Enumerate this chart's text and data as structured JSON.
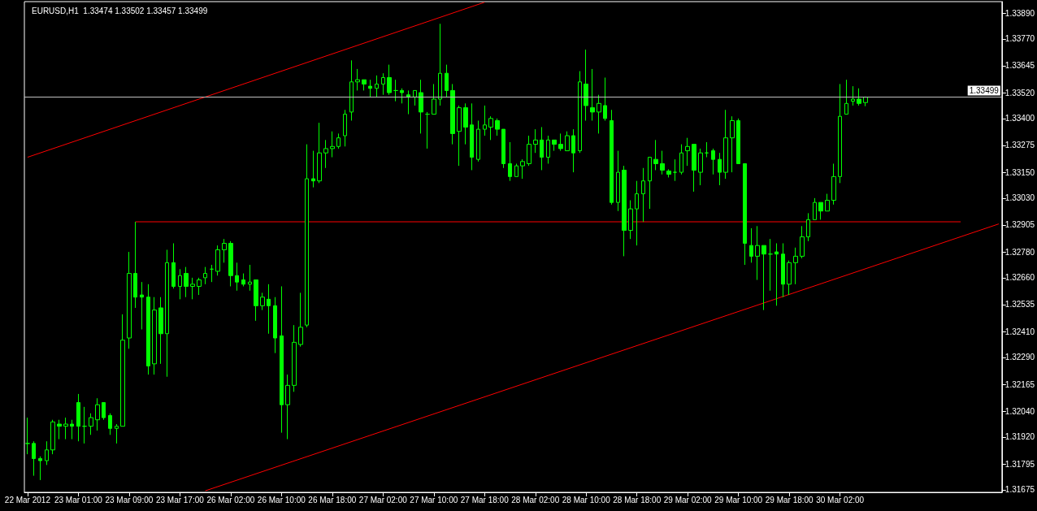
{
  "chart_data": {
    "type": "candlestick",
    "title": "EURUSD,H1  1.33474 1.33502 1.33457 1.33499",
    "color": "#00ff00",
    "categories": [
      "22 Mar 2012",
      null,
      null,
      null,
      null,
      null,
      null,
      null,
      "23 Mar 01:00",
      null,
      null,
      null,
      null,
      null,
      null,
      null,
      "23 Mar 09:00",
      null,
      null,
      null,
      null,
      null,
      null,
      null,
      "23 Mar 17:00",
      null,
      null,
      null,
      null,
      null,
      null,
      null,
      "26 Mar 02:00",
      null,
      null,
      null,
      null,
      null,
      null,
      null,
      "26 Mar 10:00",
      null,
      null,
      null,
      null,
      null,
      null,
      null,
      "26 Mar 18:00",
      null,
      null,
      null,
      null,
      null,
      null,
      null,
      "27 Mar 02:00",
      null,
      null,
      null,
      null,
      null,
      null,
      null,
      "27 Mar 10:00",
      null,
      null,
      null,
      null,
      null,
      null,
      null,
      "27 Mar 18:00",
      null,
      null,
      null,
      null,
      null,
      null,
      null,
      "28 Mar 02:00",
      null,
      null,
      null,
      null,
      null,
      null,
      null,
      "28 Mar 10:00",
      null,
      null,
      null,
      null,
      null,
      null,
      null,
      "28 Mar 18:00",
      null,
      null,
      null,
      null,
      null,
      null,
      null,
      "29 Mar 02:00",
      null,
      null,
      null,
      null,
      null,
      null,
      null,
      "29 Mar 10:00",
      null,
      null,
      null,
      null,
      null,
      null,
      null,
      "29 Mar 18:00",
      null,
      null,
      null,
      null,
      null,
      null,
      null,
      "30 Mar 02:00",
      null,
      null,
      null,
      null,
      null,
      null,
      null,
      null,
      null,
      null,
      null,
      null,
      null,
      null,
      null,
      null,
      null,
      null,
      null,
      null,
      null,
      null,
      null,
      null,
      null
    ],
    "ohlc": [
      [
        1.3189,
        1.3201,
        1.3184,
        1.3189
      ],
      [
        1.3189,
        1.319,
        1.3174,
        1.3182
      ],
      [
        1.3182,
        1.3183,
        1.3172,
        1.3181
      ],
      [
        1.3181,
        1.319,
        1.3179,
        1.3186
      ],
      [
        1.3186,
        1.32,
        1.3184,
        1.3199
      ],
      [
        1.3198,
        1.32,
        1.3191,
        1.3197
      ],
      [
        1.3197,
        1.3201,
        1.3191,
        1.3198
      ],
      [
        1.3198,
        1.32,
        1.3191,
        1.3197
      ],
      [
        1.3208,
        1.3212,
        1.319,
        1.3197
      ],
      [
        1.3197,
        1.3206,
        1.3189,
        1.3197
      ],
      [
        1.3197,
        1.3203,
        1.3193,
        1.3201
      ],
      [
        1.32,
        1.321,
        1.3195,
        1.3207
      ],
      [
        1.3208,
        1.3208,
        1.32,
        1.3201
      ],
      [
        1.3202,
        1.3203,
        1.3193,
        1.3196
      ],
      [
        1.3196,
        1.3198,
        1.3189,
        1.3197
      ],
      [
        1.3197,
        1.3249,
        1.3197,
        1.3237
      ],
      [
        1.3238,
        1.3278,
        1.3233,
        1.3268
      ],
      [
        1.3268,
        1.3292,
        1.3252,
        1.3257
      ],
      [
        1.3258,
        1.3264,
        1.3242,
        1.3257
      ],
      [
        1.3257,
        1.3263,
        1.3221,
        1.3225
      ],
      [
        1.3226,
        1.3257,
        1.3221,
        1.3251
      ],
      [
        1.3252,
        1.3257,
        1.3226,
        1.324
      ],
      [
        1.324,
        1.3279,
        1.322,
        1.3273
      ],
      [
        1.3273,
        1.3282,
        1.3261,
        1.3262
      ],
      [
        1.3262,
        1.327,
        1.3256,
        1.3267
      ],
      [
        1.3268,
        1.3271,
        1.3257,
        1.3262
      ],
      [
        1.3262,
        1.3266,
        1.3256,
        1.3263
      ],
      [
        1.3262,
        1.3266,
        1.3258,
        1.3265
      ],
      [
        1.3266,
        1.3271,
        1.3263,
        1.3268
      ],
      [
        1.327,
        1.3272,
        1.3264,
        1.327
      ],
      [
        1.3269,
        1.3281,
        1.3267,
        1.3279
      ],
      [
        1.3279,
        1.3284,
        1.3273,
        1.3282
      ],
      [
        1.3282,
        1.3283,
        1.3262,
        1.3267
      ],
      [
        1.3267,
        1.3273,
        1.326,
        1.3264
      ],
      [
        1.3265,
        1.3268,
        1.3262,
        1.3263
      ],
      [
        1.3263,
        1.3272,
        1.326,
        1.3264
      ],
      [
        1.3265,
        1.3265,
        1.3246,
        1.3253
      ],
      [
        1.3253,
        1.3259,
        1.3251,
        1.3257
      ],
      [
        1.3256,
        1.3263,
        1.324,
        1.3253
      ],
      [
        1.3253,
        1.3257,
        1.3231,
        1.3238
      ],
      [
        1.3239,
        1.3262,
        1.3194,
        1.3207
      ],
      [
        1.3207,
        1.3221,
        1.3191,
        1.3216
      ],
      [
        1.3216,
        1.3244,
        1.3213,
        1.3236
      ],
      [
        1.3235,
        1.3259,
        1.3234,
        1.3243
      ],
      [
        1.3244,
        1.3328,
        1.3243,
        1.3312
      ],
      [
        1.3312,
        1.3325,
        1.3308,
        1.3311
      ],
      [
        1.3311,
        1.3338,
        1.331,
        1.3324
      ],
      [
        1.3324,
        1.333,
        1.3317,
        1.3326
      ],
      [
        1.3326,
        1.3334,
        1.3322,
        1.3327
      ],
      [
        1.3327,
        1.3333,
        1.3326,
        1.3331
      ],
      [
        1.3332,
        1.3344,
        1.3327,
        1.3342
      ],
      [
        1.3343,
        1.3367,
        1.3339,
        1.3357
      ],
      [
        1.3357,
        1.3363,
        1.3353,
        1.3358
      ],
      [
        1.3358,
        1.3358,
        1.3353,
        1.3356
      ],
      [
        1.3355,
        1.3358,
        1.335,
        1.3354
      ],
      [
        1.3354,
        1.336,
        1.335,
        1.3356
      ],
      [
        1.3356,
        1.3361,
        1.3351,
        1.3359
      ],
      [
        1.3359,
        1.3365,
        1.3351,
        1.3352
      ],
      [
        1.3353,
        1.3358,
        1.3348,
        1.3353
      ],
      [
        1.3353,
        1.3354,
        1.3347,
        1.3352
      ],
      [
        1.3351,
        1.3353,
        1.3342,
        1.335
      ],
      [
        1.335,
        1.3353,
        1.3346,
        1.3353
      ],
      [
        1.3352,
        1.3358,
        1.3333,
        1.3343
      ],
      [
        1.3342,
        1.3343,
        1.3326,
        1.3342
      ],
      [
        1.3342,
        1.3356,
        1.3342,
        1.3349
      ],
      [
        1.3349,
        1.3384,
        1.3346,
        1.3361
      ],
      [
        1.3361,
        1.3365,
        1.335,
        1.3353
      ],
      [
        1.3353,
        1.3356,
        1.3328,
        1.3333
      ],
      [
        1.3334,
        1.3346,
        1.3318,
        1.3345
      ],
      [
        1.3345,
        1.3347,
        1.3328,
        1.3336
      ],
      [
        1.3337,
        1.3347,
        1.3316,
        1.3322
      ],
      [
        1.3321,
        1.3339,
        1.332,
        1.3335
      ],
      [
        1.3335,
        1.3346,
        1.3332,
        1.3337
      ],
      [
        1.3336,
        1.3341,
        1.333,
        1.334
      ],
      [
        1.3339,
        1.334,
        1.3332,
        1.3335
      ],
      [
        1.3335,
        1.3335,
        1.3317,
        1.3319
      ],
      [
        1.3319,
        1.3329,
        1.3311,
        1.3313
      ],
      [
        1.3313,
        1.3319,
        1.3313,
        1.3318
      ],
      [
        1.3318,
        1.3321,
        1.3312,
        1.332
      ],
      [
        1.3319,
        1.3332,
        1.3318,
        1.3328
      ],
      [
        1.3328,
        1.3335,
        1.3324,
        1.333
      ],
      [
        1.333,
        1.3336,
        1.3316,
        1.3322
      ],
      [
        1.3322,
        1.3332,
        1.3319,
        1.333
      ],
      [
        1.333,
        1.333,
        1.3325,
        1.3328
      ],
      [
        1.3328,
        1.3333,
        1.3325,
        1.3326
      ],
      [
        1.3325,
        1.3334,
        1.3325,
        1.3332
      ],
      [
        1.3332,
        1.3335,
        1.3315,
        1.3324
      ],
      [
        1.3325,
        1.3362,
        1.3324,
        1.3357
      ],
      [
        1.3356,
        1.3372,
        1.3339,
        1.3346
      ],
      [
        1.3345,
        1.3363,
        1.3339,
        1.3343
      ],
      [
        1.3343,
        1.3351,
        1.3333,
        1.3347
      ],
      [
        1.3346,
        1.3359,
        1.3339,
        1.334
      ],
      [
        1.3339,
        1.3344,
        1.33,
        1.3301
      ],
      [
        1.3301,
        1.3325,
        1.3297,
        1.3315
      ],
      [
        1.3316,
        1.3318,
        1.3276,
        1.3288
      ],
      [
        1.3288,
        1.3302,
        1.3284,
        1.3298
      ],
      [
        1.3298,
        1.3311,
        1.3281,
        1.3305
      ],
      [
        1.3305,
        1.3317,
        1.3292,
        1.3311
      ],
      [
        1.3311,
        1.3322,
        1.3298,
        1.3322
      ],
      [
        1.3321,
        1.333,
        1.3316,
        1.3319
      ],
      [
        1.3319,
        1.3325,
        1.3314,
        1.3316
      ],
      [
        1.33156,
        1.33164,
        1.33126,
        1.33141
      ],
      [
        1.3315,
        1.3321,
        1.3311,
        1.3315
      ],
      [
        1.3315,
        1.3328,
        1.3314,
        1.3324
      ],
      [
        1.3325,
        1.3331,
        1.3318,
        1.3327
      ],
      [
        1.3328,
        1.3328,
        1.3306,
        1.3316
      ],
      [
        1.3315,
        1.3326,
        1.3309,
        1.3324
      ],
      [
        1.3324,
        1.3329,
        1.3322,
        1.3324
      ],
      [
        1.3325,
        1.3326,
        1.3314,
        1.3321
      ],
      [
        1.3321,
        1.3324,
        1.3309,
        1.3315
      ],
      [
        1.3315,
        1.3344,
        1.3312,
        1.3331
      ],
      [
        1.3331,
        1.3341,
        1.3315,
        1.3339
      ],
      [
        1.3339,
        1.334,
        1.3319,
        1.3319
      ],
      [
        1.3319,
        1.3319,
        1.3272,
        1.3282
      ],
      [
        1.3281,
        1.3289,
        1.3273,
        1.3276
      ],
      [
        1.3276,
        1.329,
        1.3265,
        1.3281
      ],
      [
        1.3281,
        1.3281,
        1.3251,
        1.3277
      ],
      [
        1.3277,
        1.3284,
        1.326,
        1.3277
      ],
      [
        1.3278,
        1.3282,
        1.3253,
        1.3277
      ],
      [
        1.3277,
        1.3282,
        1.3257,
        1.3263
      ],
      [
        1.3263,
        1.3274,
        1.3258,
        1.3273
      ],
      [
        1.3273,
        1.328,
        1.3263,
        1.3276
      ],
      [
        1.3276,
        1.329,
        1.3275,
        1.3285
      ],
      [
        1.3285,
        1.3296,
        1.3283,
        1.3293
      ],
      [
        1.3293,
        1.3303,
        1.3293,
        1.3301
      ],
      [
        1.3301,
        1.3301,
        1.3293,
        1.3297
      ],
      [
        1.3297,
        1.3305,
        1.3297,
        1.3302
      ],
      [
        1.3302,
        1.3319,
        1.33,
        1.3313
      ],
      [
        1.3313,
        1.3356,
        1.331,
        1.3341
      ],
      [
        1.3342,
        1.3358,
        1.3342,
        1.3347
      ],
      [
        1.3348,
        1.3355,
        1.3346,
        1.3349
      ],
      [
        1.3349,
        1.3354,
        1.3346,
        1.3347
      ],
      [
        1.33474,
        1.33502,
        1.33457,
        1.33499
      ],
      null,
      null,
      null,
      null,
      null,
      null,
      null,
      null,
      null,
      null,
      null,
      null,
      null,
      null,
      null,
      null,
      null,
      null,
      null,
      null,
      null
    ],
    "series": [
      {
        "type": "line",
        "color": "#ff0000",
        "values": [
          1.3322,
          null,
          null,
          null,
          null,
          null,
          null,
          null,
          null,
          null,
          null,
          null,
          null,
          null,
          null,
          null,
          null,
          null,
          null,
          null,
          null,
          null,
          null,
          null,
          null,
          null,
          null,
          null,
          null,
          null,
          null,
          null,
          null,
          null,
          null,
          null,
          null,
          null,
          null,
          null,
          null,
          null,
          null,
          null,
          null,
          null,
          null,
          null,
          null,
          null,
          null,
          null,
          null,
          null,
          null,
          null,
          null,
          null,
          null,
          null,
          null,
          null,
          null,
          null,
          null,
          null,
          null,
          null,
          null,
          null,
          null,
          null,
          1.3394,
          null,
          null,
          null,
          null,
          null,
          null,
          null,
          null,
          null,
          null,
          null,
          null,
          null,
          null,
          null,
          null,
          null,
          null,
          null,
          null,
          null,
          null,
          null,
          null,
          null,
          null,
          null,
          null,
          null,
          null,
          null,
          null,
          null,
          null,
          null,
          null,
          null,
          null,
          null,
          null,
          null,
          null,
          null,
          null,
          null,
          null,
          null,
          null,
          null,
          null,
          null,
          null,
          null,
          null,
          null,
          null,
          null,
          null,
          null,
          null,
          null,
          null,
          null,
          null,
          null,
          null,
          null,
          null,
          null,
          null,
          null,
          null,
          null,
          null,
          null,
          null,
          null,
          null,
          null,
          null,
          null
        ]
      },
      {
        "type": "line",
        "color": "#ff0000",
        "values": [
          null,
          null,
          null,
          null,
          null,
          null,
          null,
          null,
          null,
          null,
          null,
          null,
          null,
          null,
          null,
          null,
          null,
          null,
          null,
          null,
          null,
          null,
          null,
          null,
          null,
          null,
          null,
          null,
          1.3167,
          null,
          null,
          null,
          null,
          null,
          null,
          null,
          null,
          null,
          null,
          null,
          null,
          null,
          null,
          null,
          null,
          null,
          null,
          null,
          null,
          null,
          null,
          null,
          null,
          null,
          null,
          null,
          null,
          null,
          null,
          null,
          null,
          null,
          null,
          null,
          null,
          null,
          null,
          null,
          null,
          null,
          null,
          null,
          null,
          null,
          null,
          null,
          null,
          null,
          null,
          null,
          null,
          null,
          null,
          null,
          null,
          null,
          null,
          null,
          null,
          null,
          null,
          null,
          null,
          null,
          null,
          null,
          null,
          null,
          null,
          null,
          null,
          null,
          null,
          null,
          null,
          null,
          null,
          null,
          null,
          null,
          null,
          null,
          null,
          null,
          null,
          null,
          null,
          null,
          null,
          null,
          null,
          null,
          null,
          null,
          null,
          null,
          null,
          null,
          null,
          null,
          null,
          null,
          null,
          null,
          null,
          null,
          null,
          null,
          null,
          null,
          null,
          null,
          null,
          null,
          null,
          null,
          null,
          null,
          null,
          null,
          null,
          null,
          null,
          1.3291
        ]
      },
      {
        "type": "line",
        "color": "#ff0000",
        "values": [
          null,
          null,
          null,
          null,
          null,
          null,
          null,
          null,
          null,
          null,
          null,
          null,
          null,
          null,
          null,
          null,
          null,
          1.3292,
          null,
          null,
          null,
          null,
          null,
          null,
          null,
          null,
          null,
          null,
          null,
          null,
          null,
          null,
          null,
          null,
          null,
          null,
          null,
          null,
          null,
          null,
          null,
          null,
          null,
          null,
          null,
          null,
          null,
          null,
          null,
          null,
          null,
          null,
          null,
          null,
          null,
          null,
          null,
          null,
          null,
          null,
          null,
          null,
          null,
          null,
          null,
          null,
          null,
          null,
          null,
          null,
          null,
          null,
          null,
          null,
          null,
          null,
          null,
          null,
          null,
          null,
          null,
          null,
          null,
          null,
          null,
          null,
          null,
          null,
          null,
          null,
          null,
          null,
          null,
          null,
          null,
          null,
          null,
          null,
          null,
          null,
          null,
          null,
          null,
          null,
          null,
          null,
          null,
          null,
          null,
          null,
          null,
          null,
          null,
          null,
          null,
          null,
          null,
          null,
          null,
          null,
          null,
          null,
          null,
          null,
          null,
          null,
          null,
          null,
          null,
          null,
          null,
          null,
          null,
          null,
          null,
          null,
          null,
          null,
          null,
          null,
          null,
          null,
          null,
          null,
          null,
          null,
          null,
          1.3292,
          null,
          null,
          null,
          null,
          null,
          null
        ]
      }
    ],
    "ylim": [
      1.31663,
      1.33943
    ],
    "yticks": [
      {
        "value": 1.31675,
        "label": "1.31675"
      },
      {
        "value": 1.31795,
        "label": "1.31795"
      },
      {
        "value": 1.3192,
        "label": "1.31920"
      },
      {
        "value": 1.3204,
        "label": "1.32040"
      },
      {
        "value": 1.32165,
        "label": "1.32165"
      },
      {
        "value": 1.3229,
        "label": "1.32290"
      },
      {
        "value": 1.3241,
        "label": "1.32410"
      },
      {
        "value": 1.32535,
        "label": "1.32535"
      },
      {
        "value": 1.3266,
        "label": "1.32660"
      },
      {
        "value": 1.3278,
        "label": "1.32780"
      },
      {
        "value": 1.32905,
        "label": "1.32905"
      },
      {
        "value": 1.3303,
        "label": "1.33030"
      },
      {
        "value": 1.3315,
        "label": "1.33150"
      },
      {
        "value": 1.33275,
        "label": "1.33275"
      },
      {
        "value": 1.334,
        "label": "1.33400"
      },
      {
        "value": 1.3352,
        "label": "1.33520"
      },
      {
        "value": 1.33645,
        "label": "1.33645"
      },
      {
        "value": 1.3377,
        "label": "1.33770"
      },
      {
        "value": 1.3389,
        "label": "1.33890"
      }
    ],
    "ref_lines": [
      {
        "axis": "y",
        "value": 1.33499,
        "label": "1.33499",
        "color": "#c0c0c0"
      }
    ]
  }
}
